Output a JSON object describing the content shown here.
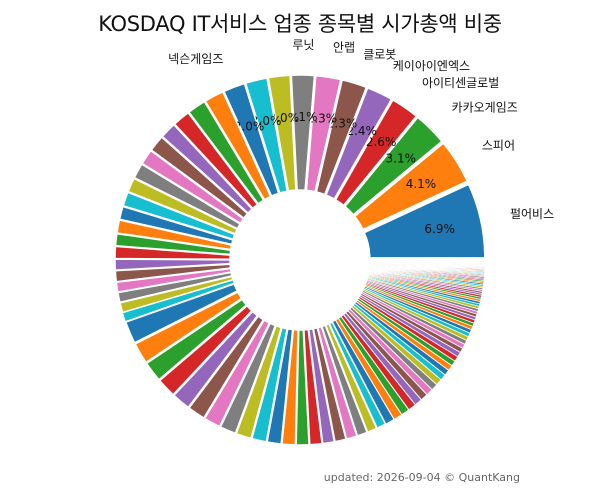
{
  "chart_data": {
    "type": "pie",
    "title": "KOSDAQ IT서비스 업종 종목별 시가총액 비중",
    "footer": "updated: 2026-09-04 © QuantKang",
    "total_slices": 120,
    "slices": [
      {
        "label": "펄어비스",
        "value": 6.9,
        "value_label": "6.9%"
      },
      {
        "label": "스피어",
        "value": 4.1,
        "value_label": "4.1%"
      },
      {
        "label": "카카오게임즈",
        "value": 3.1,
        "value_label": "3.1%"
      },
      {
        "label": "아이티센글로벌",
        "value": 2.6,
        "value_label": "2.6%"
      },
      {
        "label": "케이아이엔엑스",
        "value": 2.4,
        "value_label": "2.4%"
      },
      {
        "label": "클로봇",
        "value": 2.3,
        "value_label": "2.3%"
      },
      {
        "label": "안랩",
        "value": 2.3,
        "value_label": "2.3%"
      },
      {
        "label": "루닛",
        "value": 2.1,
        "value_label": "2.1%"
      },
      {
        "label": "",
        "value": 2.0,
        "value_label": "2.0%"
      },
      {
        "label": "",
        "value": 2.0,
        "value_label": "2.0%"
      },
      {
        "label": "넥슨게임즈",
        "value": 2.0,
        "value_label": "2.0%"
      },
      {
        "label": "",
        "value": 1.8,
        "value_label": ""
      },
      {
        "label": "",
        "value": 1.7,
        "value_label": ""
      },
      {
        "label": "",
        "value": 1.6,
        "value_label": ""
      },
      {
        "label": "",
        "value": 1.5,
        "value_label": ""
      },
      {
        "label": "",
        "value": 1.5,
        "value_label": ""
      },
      {
        "label": "",
        "value": 1.4,
        "value_label": ""
      },
      {
        "label": "",
        "value": 1.4,
        "value_label": ""
      },
      {
        "label": "",
        "value": 1.3,
        "value_label": ""
      },
      {
        "label": "",
        "value": 1.3,
        "value_label": ""
      },
      {
        "label": "",
        "value": 1.2,
        "value_label": ""
      },
      {
        "label": "",
        "value": 1.2,
        "value_label": ""
      },
      {
        "label": "",
        "value": 1.1,
        "value_label": ""
      },
      {
        "label": "",
        "value": 1.1,
        "value_label": ""
      },
      {
        "label": "",
        "value": 1.0,
        "value_label": ""
      },
      {
        "label": "",
        "value": 1.0,
        "value_label": ""
      },
      {
        "label": "",
        "value": 0.9,
        "value_label": ""
      },
      {
        "label": "",
        "value": 0.9,
        "value_label": ""
      },
      {
        "label": "",
        "value": 0.9,
        "value_label": ""
      },
      {
        "label": "",
        "value": 0.8,
        "value_label": ""
      }
    ],
    "colors": [
      "#1f77b4",
      "#ff7f0e",
      "#2ca02c",
      "#d62728",
      "#9467bd",
      "#8c564b",
      "#e377c2",
      "#7f7f7f",
      "#bcbd22",
      "#17becf"
    ]
  }
}
